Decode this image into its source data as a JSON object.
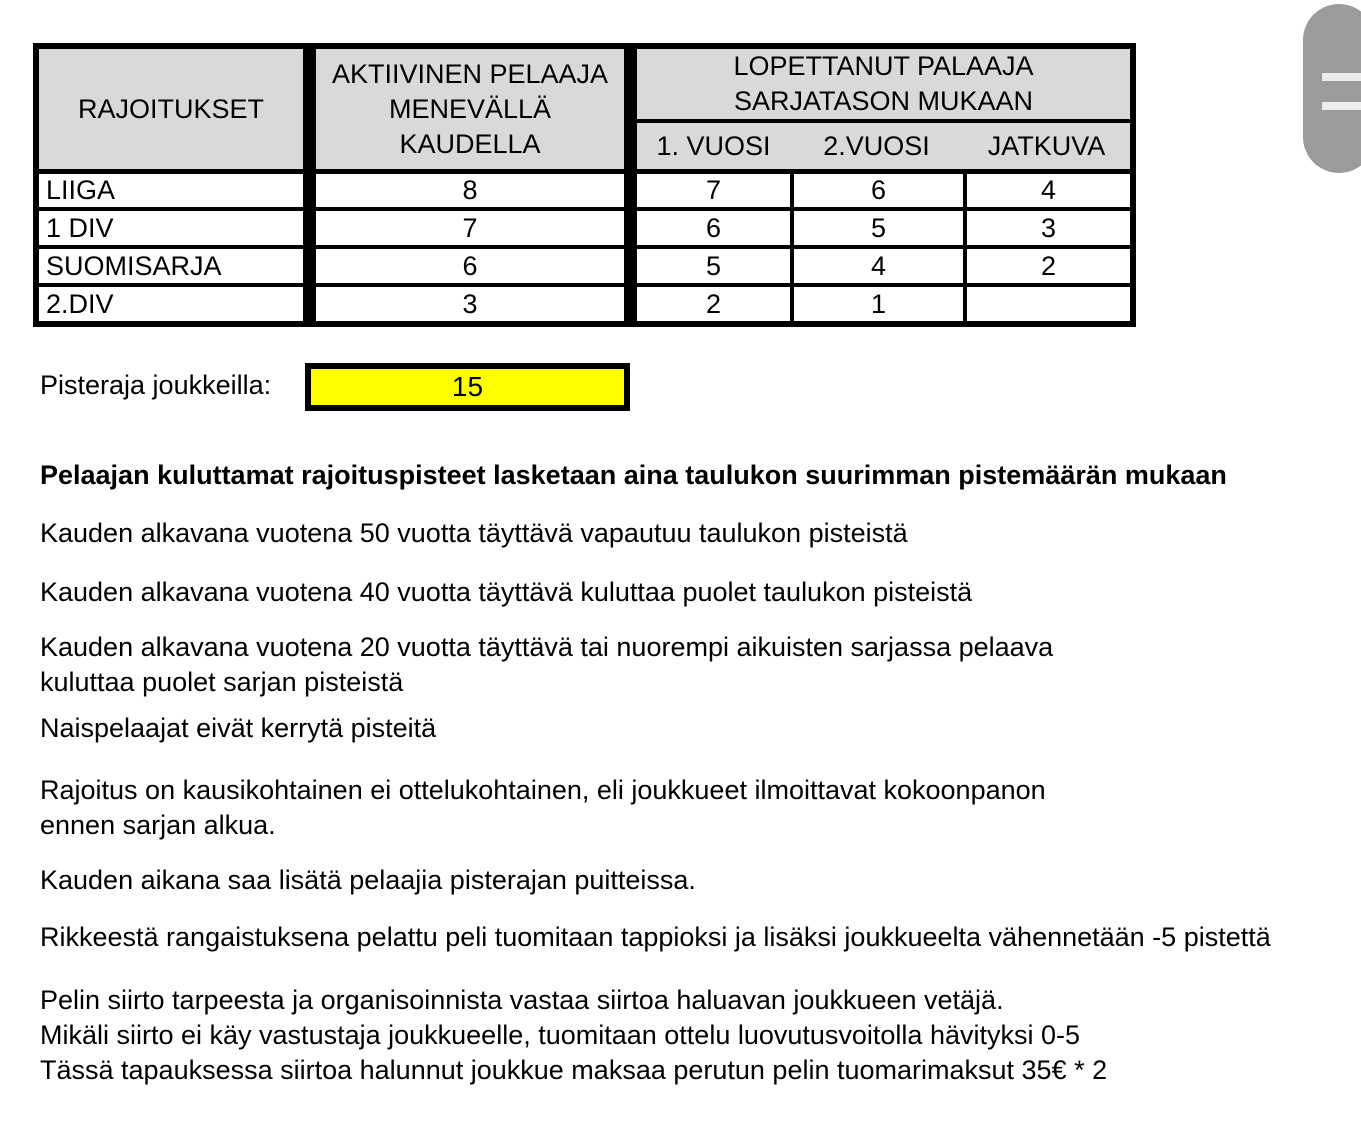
{
  "table": {
    "header_bg": "#d9d9d9",
    "headers": {
      "restrictions": "RAJOITUKSET",
      "active_player": "AKTIIVINEN PELAAJA\nMENEVÄLLÄ\nKAUDELLA",
      "stopped_returnee": "LOPETTANUT PALAAJA\nSARJATASON MUKAAN",
      "sub": [
        "1. VUOSI",
        "2.VUOSI",
        "JATKUVA"
      ]
    },
    "rows": [
      {
        "label": "LIIGA",
        "values": [
          "8",
          "7",
          "6",
          "4"
        ]
      },
      {
        "label": "1 DIV",
        "values": [
          "7",
          "6",
          "5",
          "3"
        ]
      },
      {
        "label": "SUOMISARJA",
        "values": [
          "6",
          "5",
          "4",
          "2"
        ]
      },
      {
        "label": "2.DIV",
        "values": [
          "3",
          "2",
          "1",
          ""
        ]
      }
    ]
  },
  "points_limit": {
    "label": "Pisteraja joukkeilla:",
    "value": "15",
    "box_color": "#ffff00"
  },
  "notes": {
    "heading": "Pelaajan kuluttamat rajoituspisteet lasketaan aina taulukon suurimman pistemäärän mukaan",
    "paragraphs": [
      "Kauden alkavana vuotena 50 vuotta täyttävä vapautuu taulukon pisteistä",
      "Kauden alkavana vuotena 40 vuotta täyttävä kuluttaa puolet taulukon pisteistä",
      "Kauden alkavana vuotena 20 vuotta täyttävä tai nuorempi aikuisten sarjassa pelaava\nkuluttaa puolet sarjan pisteistä",
      "Naispelaajat eivät kerrytä pisteitä",
      "Rajoitus on kausikohtainen ei ottelukohtainen, eli joukkueet ilmoittavat kokoonpanon\nennen sarjan alkua.",
      "Kauden aikana saa lisätä pelaajia pisterajan puitteissa.",
      "Rikkeestä rangaistuksena pelattu peli tuomitaan tappioksi ja lisäksi joukkueelta vähennetään -5 pistettä",
      "Pelin siirto tarpeesta ja organisoinnista vastaa siirtoa haluavan joukkueen vetäjä.\nMikäli siirto ei käy vastustaja joukkueelle, tuomitaan ottelu luovutusvoitolla hävityksi 0-5\nTässä tapauksessa siirtoa halunnut joukkue maksaa perutun pelin tuomarimaksut 35€ * 2"
    ]
  },
  "scrollbar": {
    "thumb_color": "#9b9b9b",
    "grip_color": "#ededed"
  }
}
